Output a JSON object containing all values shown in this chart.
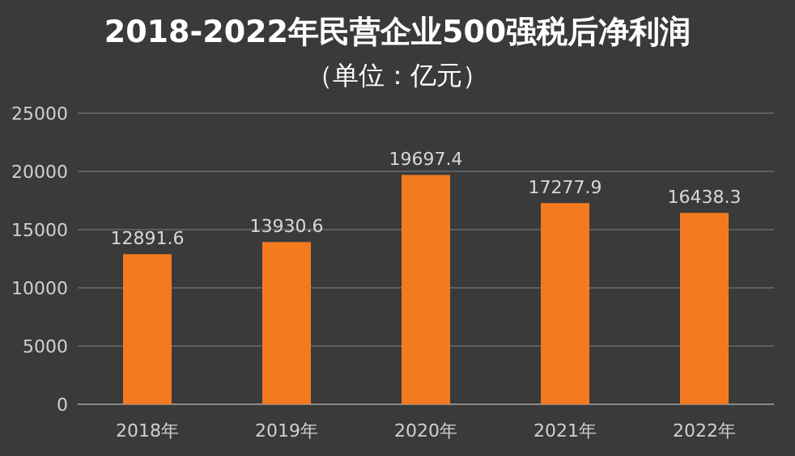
{
  "chart_data": {
    "type": "bar",
    "title": "2018-2022年民营企业500强税后净利润",
    "subtitle": "（单位：亿元）",
    "categories": [
      "2018年",
      "2019年",
      "2020年",
      "2021年",
      "2022年"
    ],
    "values": [
      12891.6,
      13930.6,
      19697.4,
      17277.9,
      16438.3
    ],
    "color": "#f47a20",
    "ylim": [
      0,
      25000
    ],
    "yticks": [
      0,
      5000,
      10000,
      15000,
      20000,
      25000
    ],
    "grid": "y",
    "data_labels": true
  }
}
